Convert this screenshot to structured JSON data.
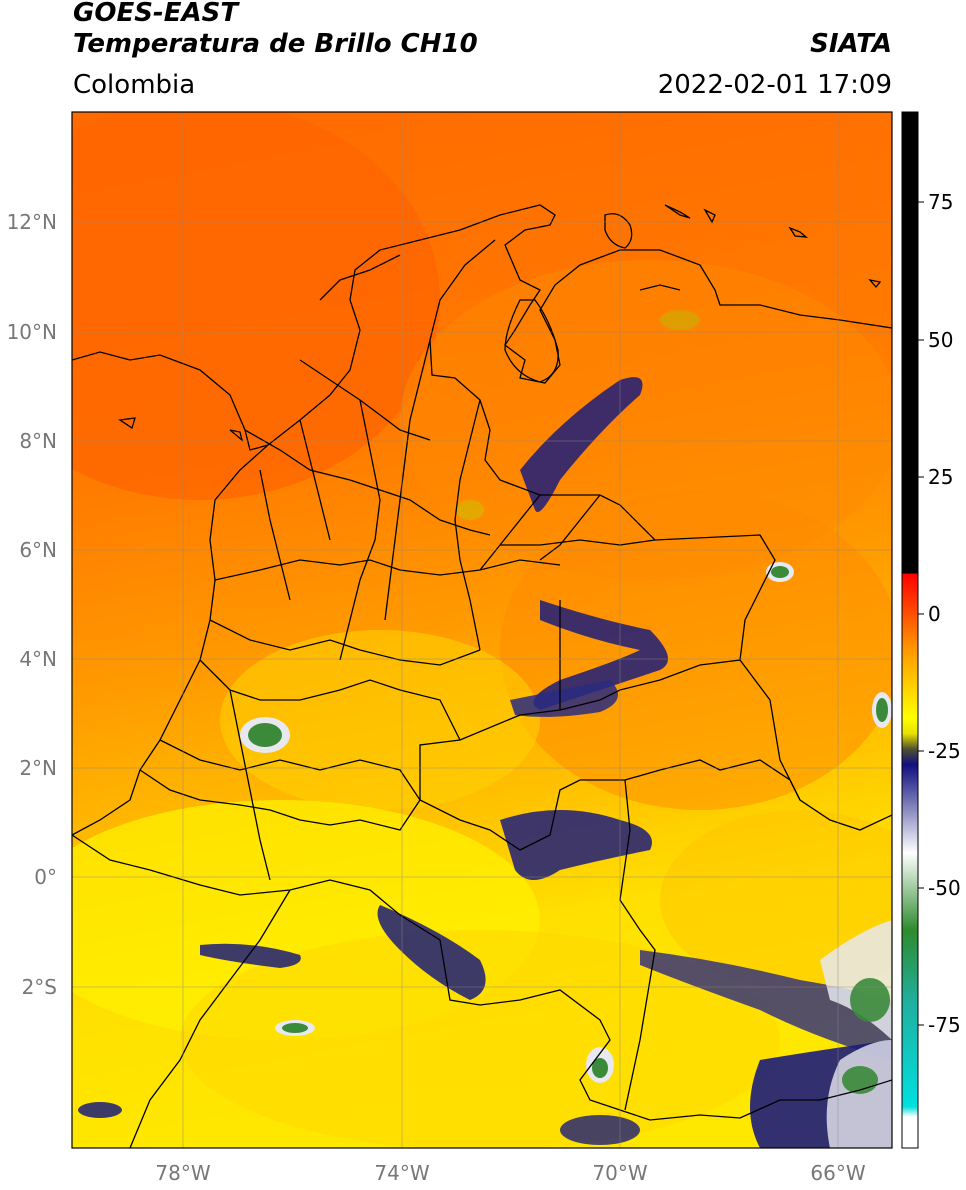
{
  "header": {
    "line1": "GOES-EAST",
    "line2": "Temperatura de Brillo CH10",
    "brand": "SIATA",
    "region": "Colombia",
    "datetime": "2022-02-01 17:09"
  },
  "map": {
    "lat_labels": [
      "12°N",
      "10°N",
      "8°N",
      "6°N",
      "4°N",
      "2°N",
      "0°",
      "2°S"
    ],
    "lon_labels": [
      "78°W",
      "74°W",
      "70°W",
      "66°W"
    ],
    "colors": {
      "warm_orange": "#ff6a00",
      "orange": "#ff8c00",
      "gold": "#ffb000",
      "yellow": "#ffee00",
      "cold_navy": "#1c1c7a",
      "cold_white": "#e8e8f0",
      "cold_green": "#3a8a3a"
    }
  },
  "colorbar": {
    "labels": [
      "75",
      "50",
      "25",
      "0",
      "-25",
      "-50",
      "-75"
    ],
    "stops": [
      {
        "color": "#000000"
      },
      {
        "color": "#ff0000"
      },
      {
        "color": "#ff9a00"
      },
      {
        "color": "#ffff00"
      },
      {
        "color": "#505030"
      },
      {
        "color": "#101080"
      },
      {
        "color": "#ffffff"
      },
      {
        "color": "#2e8b2e"
      },
      {
        "color": "#00e0e0"
      }
    ]
  }
}
